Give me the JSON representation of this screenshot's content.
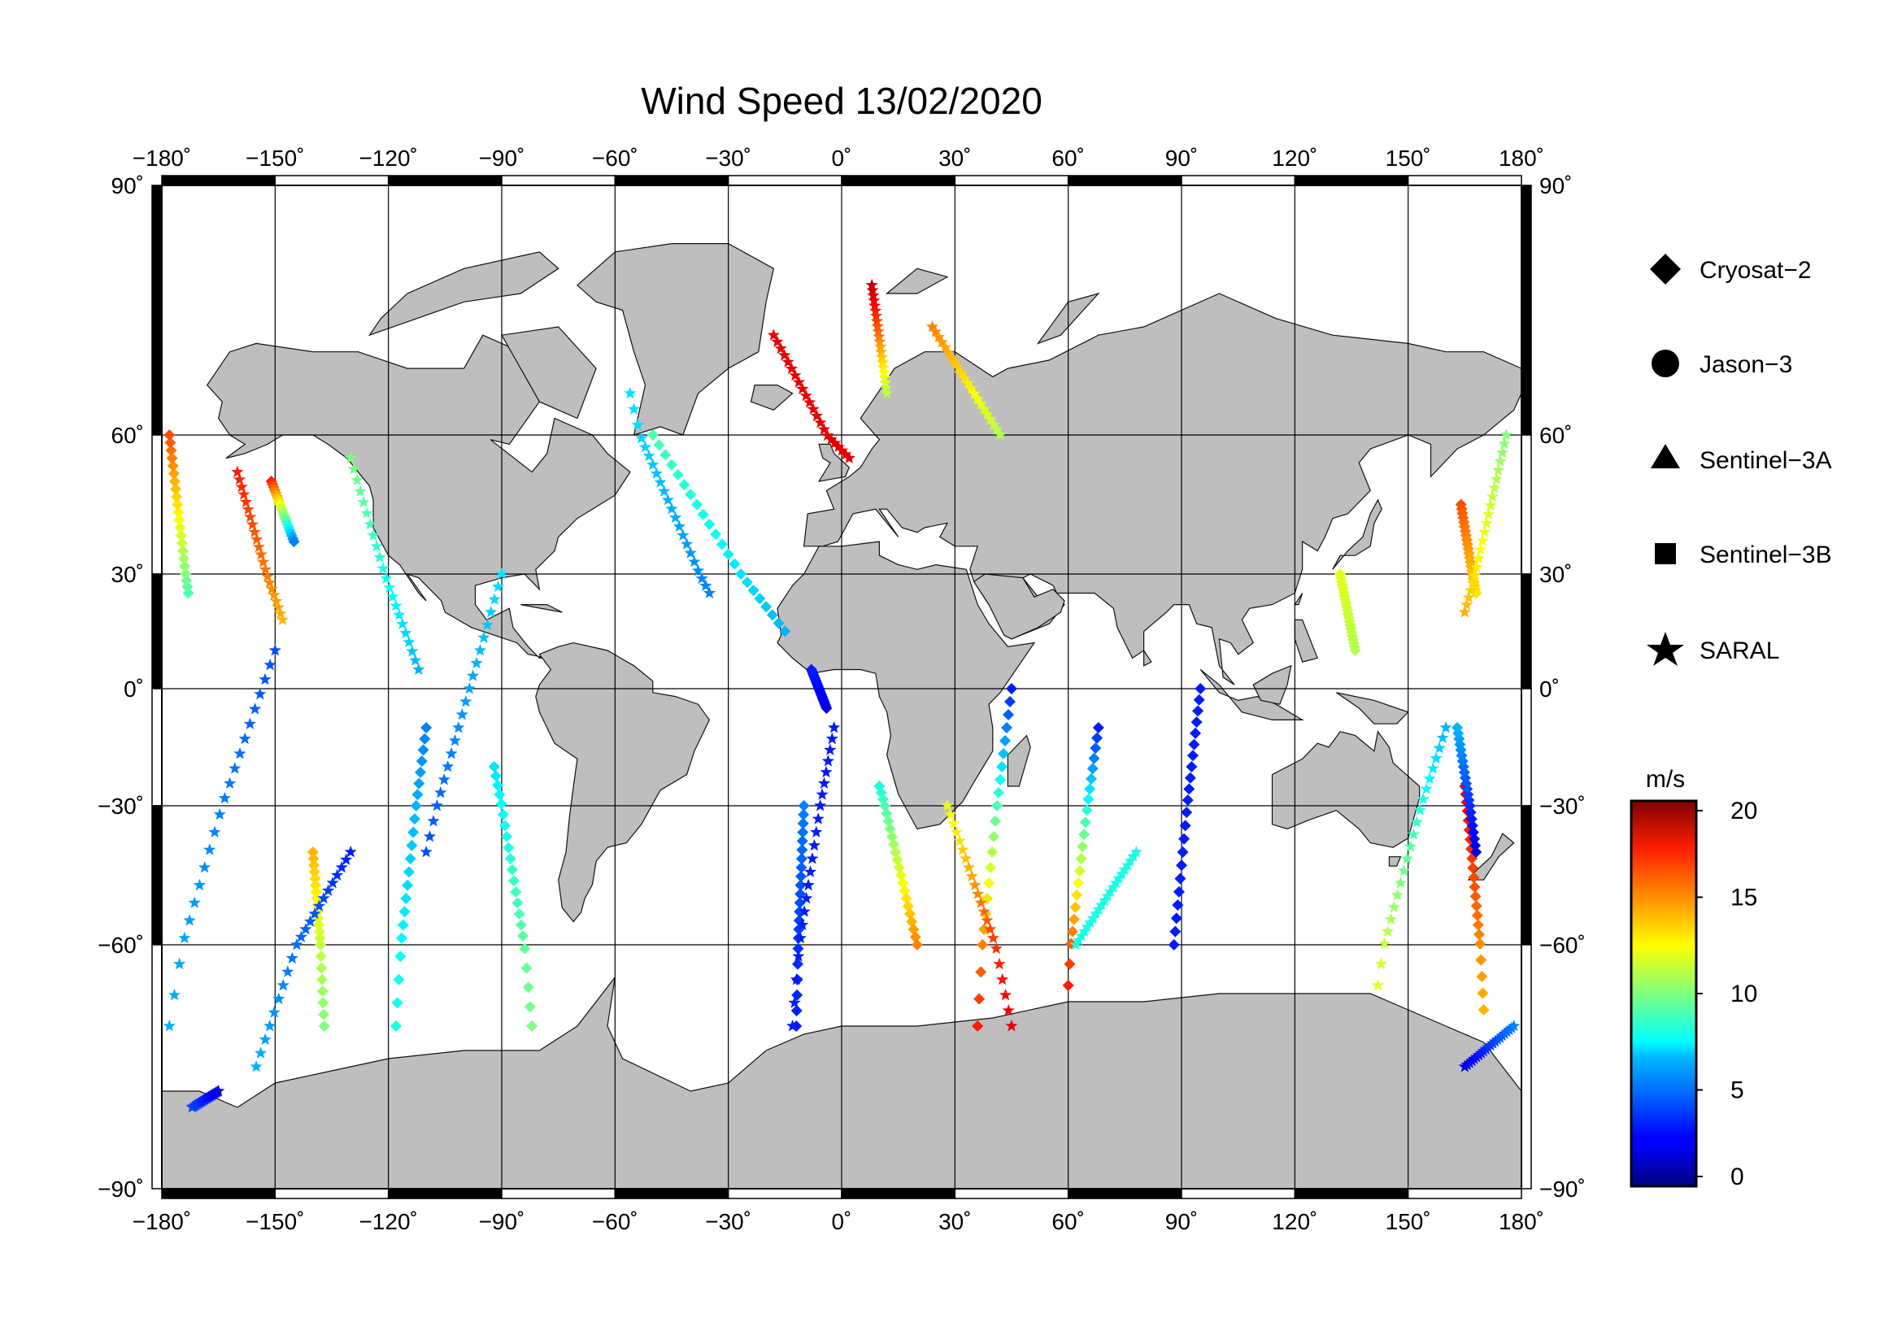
{
  "title": "Wind Speed 13/02/2020",
  "map": {
    "lon_range": [
      -180,
      180
    ],
    "lat_range": [
      -90,
      90
    ],
    "lon_ticks": [
      -180,
      -150,
      -120,
      -90,
      -60,
      -30,
      0,
      30,
      60,
      90,
      120,
      150,
      180
    ],
    "lat_ticks": [
      90,
      60,
      30,
      0,
      -30,
      -60,
      -90
    ],
    "lon_labels": [
      "−180˚",
      "−150˚",
      "−120˚",
      "−90˚",
      "−60˚",
      "−30˚",
      "0˚",
      "30˚",
      "60˚",
      "90˚",
      "120˚",
      "150˚",
      "180˚"
    ],
    "lat_labels": [
      "90˚",
      "60˚",
      "30˚",
      "0˚",
      "−30˚",
      "−60˚",
      "−90˚"
    ],
    "grid": true,
    "land_color": "#bebebe",
    "ocean_color": "#ffffff"
  },
  "legend": [
    {
      "name": "Cryosat−2",
      "marker": "diamond"
    },
    {
      "name": "Jason−3",
      "marker": "circle"
    },
    {
      "name": "Sentinel−3A",
      "marker": "triangle"
    },
    {
      "name": "Sentinel−3B",
      "marker": "square"
    },
    {
      "name": "SARAL",
      "marker": "star"
    }
  ],
  "colorbar": {
    "unit": "m/s",
    "min": 0,
    "max": 20,
    "ticks": [
      0,
      5,
      10,
      15,
      20
    ],
    "tick_labels": [
      "0",
      "5",
      "10",
      "15",
      "20"
    ],
    "colormap": "jet"
  },
  "chart_data": {
    "type": "scatter",
    "title": "Wind Speed 13/02/2020",
    "xlabel": "",
    "ylabel": "",
    "xlim": [
      -180,
      180
    ],
    "ylim": [
      -90,
      90
    ],
    "series": [
      {
        "name": "Cryosat−2",
        "marker": "diamond",
        "tracks": [
          {
            "lon": [
              -173,
              -178
            ],
            "lat": [
              25,
              60
            ],
            "ws": [
              9,
              16
            ]
          },
          {
            "lon": [
              -151,
              -145
            ],
            "lat": [
              50,
              37
            ],
            "ws": [
              17,
              5
            ]
          },
          {
            "lon": [
              -140,
              -137
            ],
            "lat": [
              -40,
              -70
            ],
            "ws": [
              14,
              10
            ]
          },
          {
            "lon": [
              -110,
              -118
            ],
            "lat": [
              -10,
              -70
            ],
            "ws": [
              5,
              8
            ]
          },
          {
            "lon": [
              -92,
              -82
            ],
            "lat": [
              -20,
              -70
            ],
            "ws": [
              7,
              10
            ]
          },
          {
            "lon": [
              -50,
              -15
            ],
            "lat": [
              60,
              15
            ],
            "ws": [
              9,
              6
            ]
          },
          {
            "lon": [
              -4,
              -8
            ],
            "lat": [
              -5,
              5
            ],
            "ws": [
              2,
              3
            ]
          },
          {
            "lon": [
              -10,
              -12
            ],
            "lat": [
              -30,
              -70
            ],
            "ws": [
              5,
              3
            ]
          },
          {
            "lon": [
              10,
              20
            ],
            "lat": [
              -25,
              -60
            ],
            "ws": [
              8,
              15
            ]
          },
          {
            "lon": [
              45,
              36
            ],
            "lat": [
              0,
              -70
            ],
            "ws": [
              3,
              17
            ]
          },
          {
            "lon": [
              60,
              68
            ],
            "lat": [
              -65,
              -10
            ],
            "ws": [
              17,
              3
            ]
          },
          {
            "lon": [
              95,
              88
            ],
            "lat": [
              0,
              -60
            ],
            "ws": [
              3,
              3
            ]
          },
          {
            "lon": [
              132,
              136
            ],
            "lat": [
              30,
              10
            ],
            "ws": [
              12,
              11
            ]
          },
          {
            "lon": [
              164,
              168
            ],
            "lat": [
              45,
              25
            ],
            "ws": [
              16,
              13
            ]
          },
          {
            "lon": [
              165,
              170
            ],
            "lat": [
              -25,
              -68
            ],
            "ws": [
              18,
              14
            ]
          },
          {
            "lon": [
              168,
              163
            ],
            "lat": [
              -40,
              -10
            ],
            "ws": [
              2,
              6
            ]
          }
        ]
      },
      {
        "name": "SARAL",
        "marker": "star",
        "tracks": [
          {
            "lon": [
              -178,
              -150
            ],
            "lat": [
              -70,
              10
            ],
            "ws": [
              6,
              4
            ]
          },
          {
            "lon": [
              -148,
              -160
            ],
            "lat": [
              18,
              52
            ],
            "ws": [
              14,
              17
            ]
          },
          {
            "lon": [
              -155,
              -130
            ],
            "lat": [
              -75,
              -40
            ],
            "ws": [
              6,
              3
            ]
          },
          {
            "lon": [
              -130,
              -112
            ],
            "lat": [
              55,
              5
            ],
            "ws": [
              10,
              6
            ]
          },
          {
            "lon": [
              -110,
              -90
            ],
            "lat": [
              -40,
              30
            ],
            "ws": [
              4,
              7
            ]
          },
          {
            "lon": [
              -56,
              -35
            ],
            "lat": [
              65,
              25
            ],
            "ws": [
              7,
              5
            ]
          },
          {
            "lon": [
              -18,
              2
            ],
            "lat": [
              72,
              55
            ],
            "ws": [
              18,
              18
            ]
          },
          {
            "lon": [
              -2,
              -13
            ],
            "lat": [
              -10,
              -70
            ],
            "ws": [
              3,
              3
            ]
          },
          {
            "lon": [
              8,
              12
            ],
            "lat": [
              78,
              65
            ],
            "ws": [
              19,
              11
            ]
          },
          {
            "lon": [
              24,
              42
            ],
            "lat": [
              73,
              60
            ],
            "ws": [
              15,
              11
            ]
          },
          {
            "lon": [
              28,
              45
            ],
            "lat": [
              -30,
              -70
            ],
            "ws": [
              12,
              18
            ]
          },
          {
            "lon": [
              62,
              78
            ],
            "lat": [
              -60,
              -40
            ],
            "ws": [
              8,
              8
            ]
          },
          {
            "lon": [
              142,
              160
            ],
            "lat": [
              -65,
              -10
            ],
            "ws": [
              12,
              6
            ]
          },
          {
            "lon": [
              165,
              178
            ],
            "lat": [
              -75,
              -70
            ],
            "ws": [
              2,
              5
            ]
          },
          {
            "lon": [
              176,
              165
            ],
            "lat": [
              60,
              20
            ],
            "ws": [
              10,
              14
            ]
          },
          {
            "lon": [
              -172,
              -165
            ],
            "lat": [
              -80,
              -78
            ],
            "ws": [
              4,
              2
            ]
          }
        ]
      }
    ]
  }
}
